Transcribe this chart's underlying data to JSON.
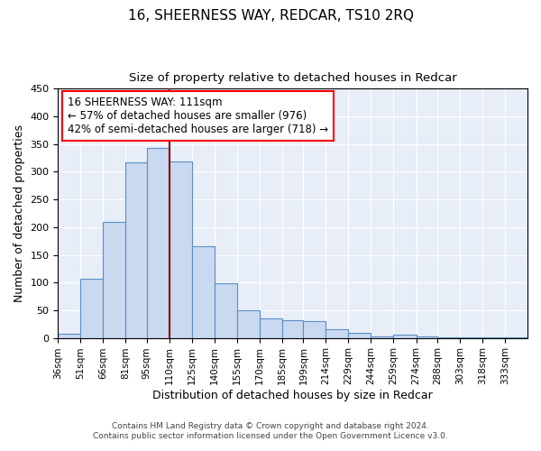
{
  "title": "16, SHEERNESS WAY, REDCAR, TS10 2RQ",
  "subtitle": "Size of property relative to detached houses in Redcar",
  "xlabel": "Distribution of detached houses by size in Redcar",
  "ylabel": "Number of detached properties",
  "bar_labels": [
    "36sqm",
    "51sqm",
    "66sqm",
    "81sqm",
    "95sqm",
    "110sqm",
    "125sqm",
    "140sqm",
    "155sqm",
    "170sqm",
    "185sqm",
    "199sqm",
    "214sqm",
    "229sqm",
    "244sqm",
    "259sqm",
    "274sqm",
    "288sqm",
    "303sqm",
    "318sqm",
    "333sqm"
  ],
  "bar_values": [
    7,
    107,
    210,
    317,
    343,
    319,
    165,
    99,
    50,
    35,
    32,
    30,
    16,
    9,
    3,
    6,
    2,
    1,
    1,
    1,
    1
  ],
  "bar_edges": [
    36,
    51,
    66,
    81,
    95,
    110,
    125,
    140,
    155,
    170,
    185,
    199,
    214,
    229,
    244,
    259,
    274,
    288,
    303,
    318,
    333,
    348
  ],
  "bar_color": "#c8d9f0",
  "bar_edge_color": "#5b8ec7",
  "vline_x": 110,
  "vline_color": "#8b0000",
  "ylim": [
    0,
    450
  ],
  "annotation_box_text": "16 SHEERNESS WAY: 111sqm\n← 57% of detached houses are smaller (976)\n42% of semi-detached houses are larger (718) →",
  "footer_line1": "Contains HM Land Registry data © Crown copyright and database right 2024.",
  "footer_line2": "Contains public sector information licensed under the Open Government Licence v3.0.",
  "title_fontsize": 11,
  "subtitle_fontsize": 9.5,
  "plot_bg_color": "#e8eef8",
  "fig_bg_color": "#ffffff"
}
